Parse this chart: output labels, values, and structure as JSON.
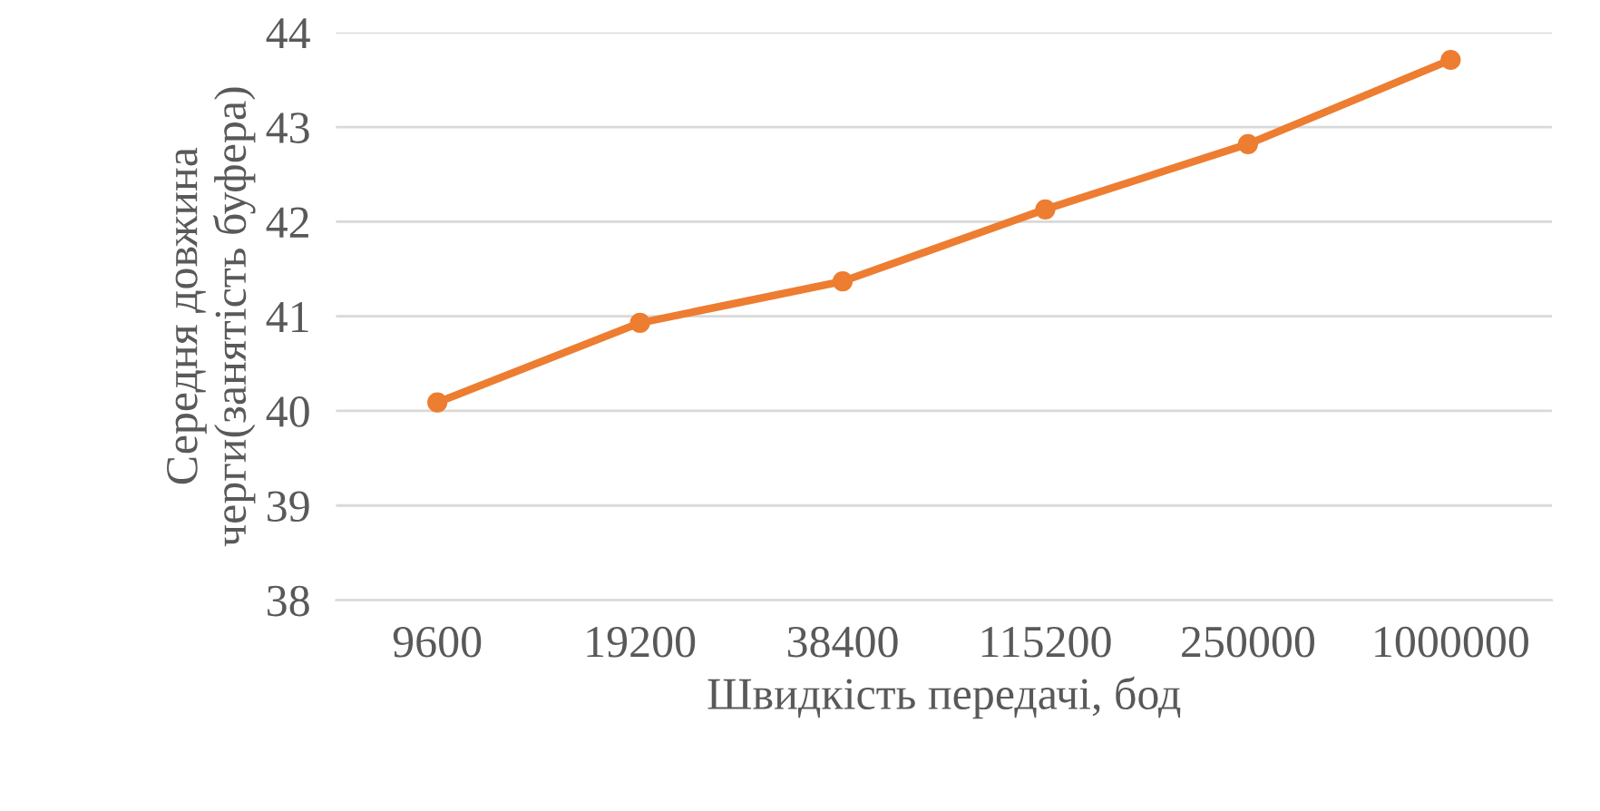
{
  "chart_data": {
    "type": "line",
    "xlabel": "Швидкість передачі, бод",
    "ylabel": "Середня довжина черги(занятість буфера)",
    "categories": [
      "9600",
      "19200",
      "38400",
      "115200",
      "250000",
      "1000000"
    ],
    "series": [
      {
        "color": "#ed7d31",
        "values": [
          40.09,
          40.93,
          41.37,
          42.13,
          42.82,
          43.71
        ]
      }
    ],
    "ylim": [
      38,
      44
    ],
    "yticks": [
      38,
      39,
      40,
      41,
      42,
      43,
      44
    ],
    "grid": "y",
    "marker": "circle",
    "line_style": "solid",
    "legend": false
  }
}
